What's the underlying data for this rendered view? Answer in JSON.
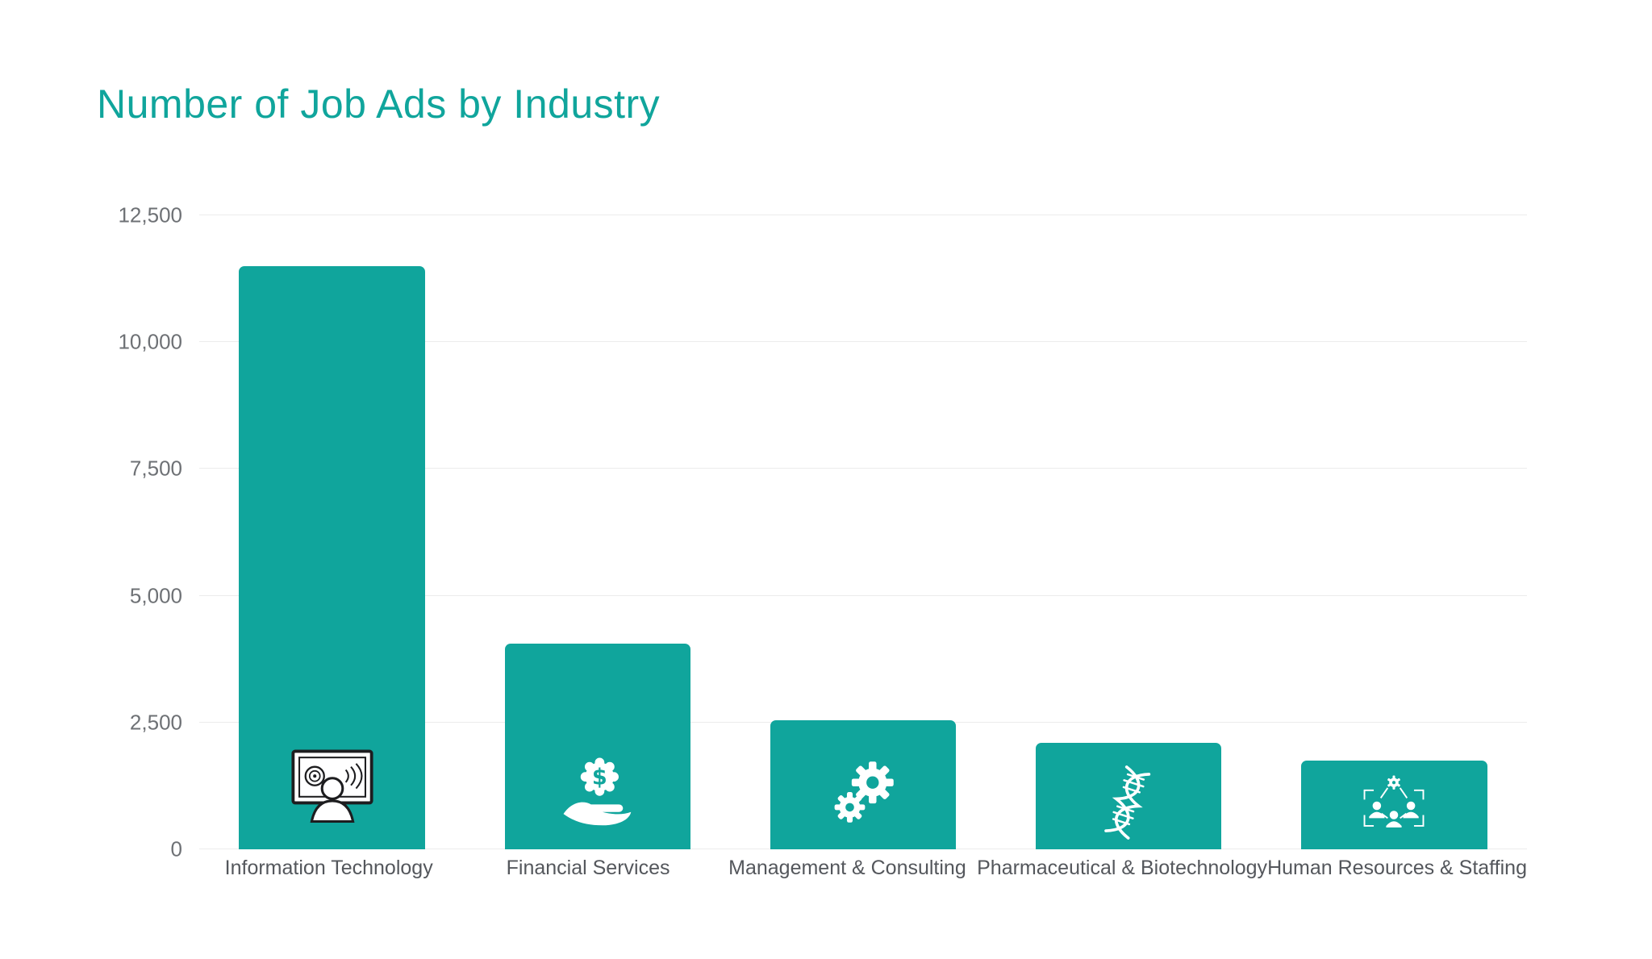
{
  "chart_data": {
    "type": "bar",
    "title": "Number of Job Ads by Industry",
    "categories": [
      "Information Technology",
      "Financial Services",
      "Management & Consulting",
      "Pharmaceutical & Biotechnology",
      "Human Resources & Staffing"
    ],
    "values": [
      11500,
      4050,
      2550,
      2100,
      1750
    ],
    "xlabel": "",
    "ylabel": "",
    "ylim": [
      0,
      12500
    ],
    "yticks": [
      0,
      2500,
      5000,
      7500,
      10000,
      12500
    ],
    "grid": true,
    "legend": false,
    "bar_icons": [
      "person-monitor-icon",
      "hand-dollar-icon",
      "gears-icon",
      "dna-icon",
      "team-network-icon"
    ]
  },
  "colors": {
    "accent": "#10A59C",
    "gridline": "#ECECEC",
    "tick_text": "#6E7175",
    "category_text": "#54575C",
    "background": "#FFFFFF",
    "icon_fg": "#FFFFFF",
    "icon_detail": "#1D1D1F"
  }
}
